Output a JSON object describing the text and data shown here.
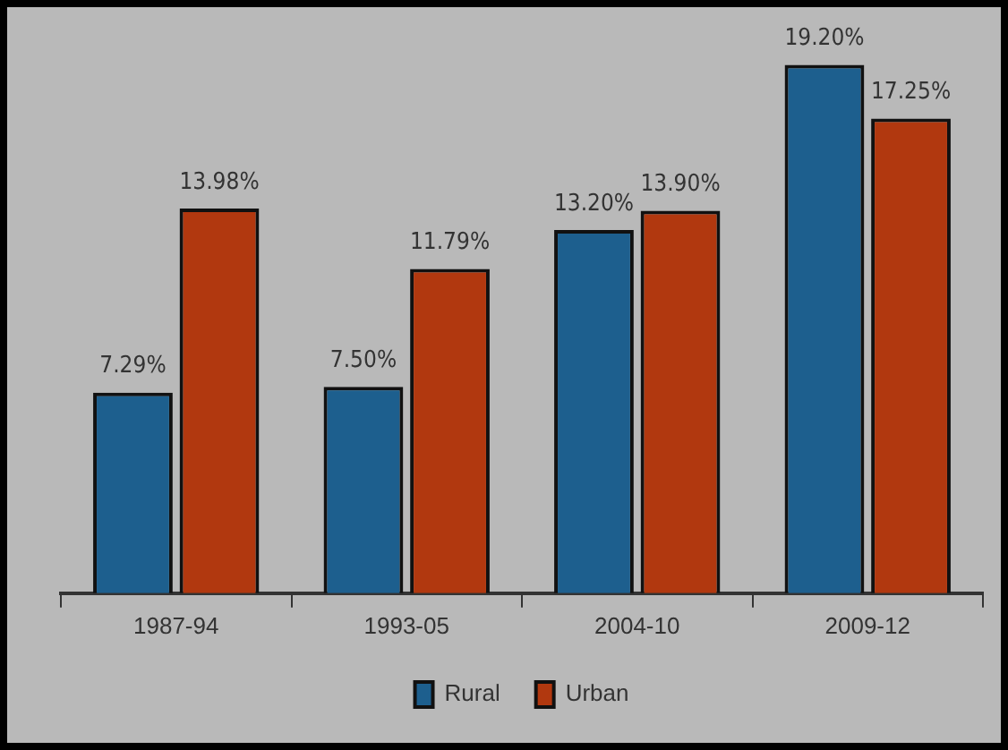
{
  "chart_data": {
    "type": "bar",
    "categories": [
      "1987-94",
      "1993-05",
      "2004-10",
      "2009-12"
    ],
    "series": [
      {
        "name": "Rural",
        "color": "#1d5f8e",
        "values": [
          7.29,
          7.5,
          13.2,
          19.2
        ],
        "value_labels": [
          "7.29%",
          "7.50%",
          "13.20%",
          "19.20%"
        ]
      },
      {
        "name": "Urban",
        "color": "#b1380f",
        "values": [
          13.98,
          11.79,
          13.9,
          17.25
        ],
        "value_labels": [
          "13.98%",
          "11.79%",
          "13.90%",
          "17.25%"
        ]
      }
    ],
    "legend": "bottom",
    "grid": false
  }
}
